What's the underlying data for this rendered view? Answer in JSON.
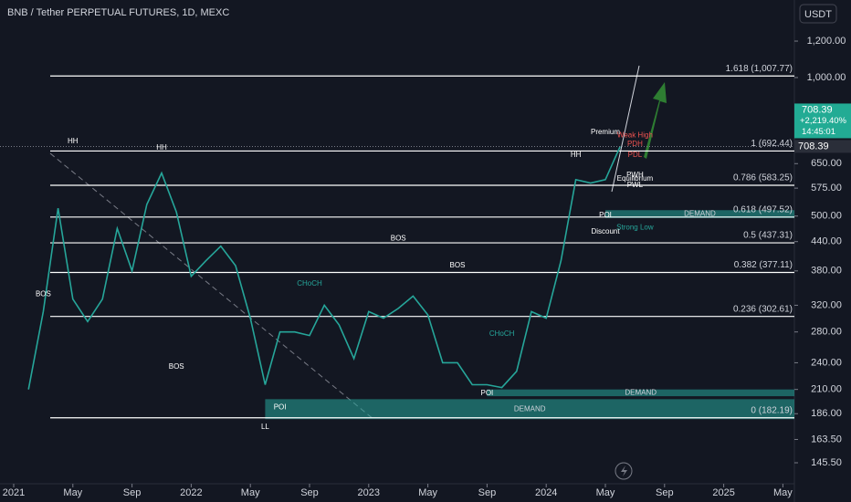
{
  "chart_data": {
    "type": "line",
    "title": "BNB / Tether PERPETUAL FUTURES, 1D, MEXC",
    "currency": "USDT",
    "log_scale": true,
    "color": "#26a69a",
    "x": [
      "2021-02",
      "2021-03",
      "2021-04",
      "2021-05",
      "2021-06",
      "2021-07",
      "2021-08",
      "2021-09",
      "2021-10",
      "2021-11",
      "2021-12",
      "2022-01",
      "2022-02",
      "2022-03",
      "2022-04",
      "2022-05",
      "2022-06",
      "2022-07",
      "2022-08",
      "2022-09",
      "2022-10",
      "2022-11",
      "2022-12",
      "2023-01",
      "2023-02",
      "2023-03",
      "2023-04",
      "2023-05",
      "2023-06",
      "2023-07",
      "2023-08",
      "2023-09",
      "2023-10",
      "2023-11",
      "2023-12",
      "2024-01",
      "2024-02",
      "2024-03",
      "2024-04",
      "2024-05",
      "2024-06"
    ],
    "values": [
      210,
      310,
      520,
      330,
      295,
      330,
      470,
      380,
      530,
      620,
      510,
      370,
      400,
      430,
      390,
      300,
      215,
      280,
      280,
      275,
      320,
      290,
      245,
      310,
      300,
      315,
      335,
      305,
      240,
      240,
      215,
      215,
      212,
      230,
      310,
      300,
      400,
      600,
      590,
      600,
      708.39
    ],
    "xticks": [
      {
        "value": "2021-01",
        "label": "2021"
      },
      {
        "value": "2021-05",
        "label": "May"
      },
      {
        "value": "2021-09",
        "label": "Sep"
      },
      {
        "value": "2022-01",
        "label": "2022"
      },
      {
        "value": "2022-05",
        "label": "May"
      },
      {
        "value": "2022-09",
        "label": "Sep"
      },
      {
        "value": "2023-01",
        "label": "2023"
      },
      {
        "value": "2023-05",
        "label": "May"
      },
      {
        "value": "2023-09",
        "label": "Sep"
      },
      {
        "value": "2024-01",
        "label": "2024"
      },
      {
        "value": "2024-05",
        "label": "May"
      },
      {
        "value": "2024-09",
        "label": "Sep"
      },
      {
        "value": "2025-01",
        "label": "2025"
      },
      {
        "value": "2025-05",
        "label": "May"
      }
    ],
    "ylim": [
      131,
      1474
    ],
    "yticks": [
      {
        "value": 145.5,
        "label": "145.50"
      },
      {
        "value": 163.5,
        "label": "163.50"
      },
      {
        "value": 186,
        "label": "186.00"
      },
      {
        "value": 210,
        "label": "210.00"
      },
      {
        "value": 240,
        "label": "240.00"
      },
      {
        "value": 280,
        "label": "280.00"
      },
      {
        "value": 320,
        "label": "320.00"
      },
      {
        "value": 380,
        "label": "380.00"
      },
      {
        "value": 440,
        "label": "440.00"
      },
      {
        "value": 500,
        "label": "500.00"
      },
      {
        "value": 575,
        "label": "575.00"
      },
      {
        "value": 650,
        "label": "650.00"
      },
      {
        "value": 1000,
        "label": "1,000.00"
      },
      {
        "value": 1200,
        "label": "1,200.00"
      }
    ],
    "levels": [
      {
        "label": "1.618 (1,007.77)",
        "value": 1007.77
      },
      {
        "label": "1 (692.44)",
        "value": 692.44
      },
      {
        "label": "0.786 (583.25)",
        "value": 583.25
      },
      {
        "label": "0.618 (497.52)",
        "value": 497.52
      },
      {
        "label": "0.5 (437.31)",
        "value": 437.31
      },
      {
        "label": "0.382 (377.11)",
        "value": 377.11
      },
      {
        "label": "0.236 (302.61)",
        "value": 302.61
      },
      {
        "label": "0 (182.19)",
        "value": 182.19
      }
    ],
    "zones": [
      {
        "label": "DEMAND",
        "from": "2022-06",
        "low": 181,
        "high": 200
      },
      {
        "label": "DEMAND",
        "from": "2023-09",
        "low": 203,
        "high": 210
      },
      {
        "label": "DEMAND",
        "from": "2024-05",
        "low": 495,
        "high": 515
      }
    ],
    "annotations": [
      {
        "text": "HH",
        "x": "2021-05",
        "y": 726
      },
      {
        "text": "HH",
        "x": "2021-11",
        "y": 703
      },
      {
        "text": "BOS",
        "x": "2021-03",
        "y": 338
      },
      {
        "text": "BOS",
        "x": "2021-12",
        "y": 235
      },
      {
        "text": "BOS",
        "x": "2023-03",
        "y": 447
      },
      {
        "text": "BOS",
        "x": "2023-07",
        "y": 390
      },
      {
        "text": "CHoCH",
        "x": "2022-09",
        "y": 356,
        "color": "#26a69a"
      },
      {
        "text": "CHoCH",
        "x": "2023-10",
        "y": 277,
        "color": "#26a69a"
      },
      {
        "text": "HH",
        "x": "2024-03",
        "y": 678
      },
      {
        "text": "LL",
        "x": "2022-06",
        "y": 174
      },
      {
        "text": "POI",
        "x": "2022-07",
        "y": 192
      },
      {
        "text": "POI",
        "x": "2023-09",
        "y": 206
      },
      {
        "text": "POI",
        "x": "2024-05",
        "y": 502
      },
      {
        "text": "Premium",
        "x": "2024-05",
        "y": 760
      },
      {
        "text": "Discount",
        "x": "2024-05",
        "y": 462
      },
      {
        "text": "Equilibrium",
        "x": "2024-07",
        "y": 602
      },
      {
        "text": "PDH",
        "x": "2024-07",
        "y": 717,
        "color": "#ef5350"
      },
      {
        "text": "PDL",
        "x": "2024-07",
        "y": 678,
        "color": "#ef5350"
      },
      {
        "text": "PWH",
        "x": "2024-07",
        "y": 614
      },
      {
        "text": "PWL",
        "x": "2024-07",
        "y": 583
      },
      {
        "text": "Strong Low",
        "x": "2024-07",
        "y": 472,
        "color": "#26a69a"
      },
      {
        "text": "Weak High",
        "x": "2024-07",
        "y": 749,
        "color": "#ef5350"
      }
    ],
    "last_price": 708.39,
    "change_label": "+2,219.40%",
    "countdown": "14:45:01"
  }
}
